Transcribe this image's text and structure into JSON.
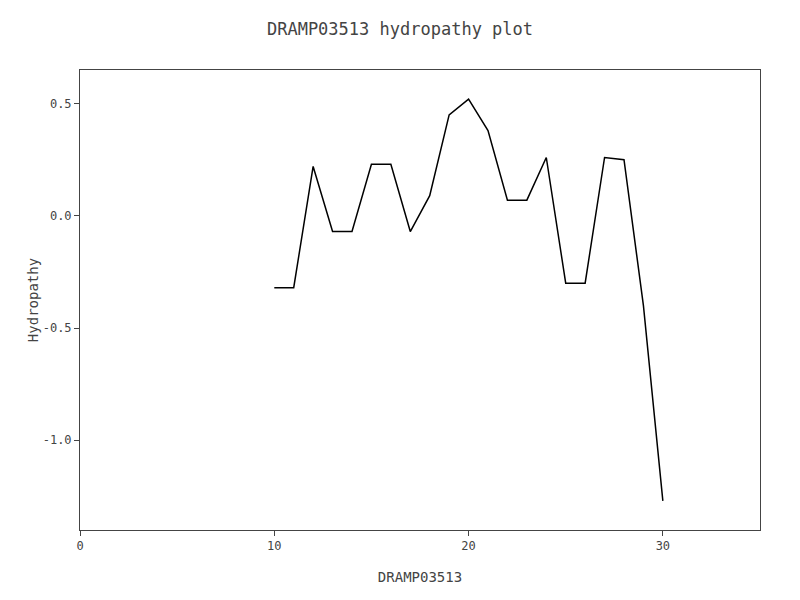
{
  "chart_data": {
    "type": "line",
    "title": "DRAMP03513 hydropathy plot",
    "xlabel": "DRAMP03513",
    "ylabel": "Hydropathy",
    "x": [
      10,
      11,
      12,
      13,
      14,
      15,
      16,
      17,
      18,
      19,
      20,
      21,
      22,
      23,
      24,
      25,
      26,
      27,
      28,
      29,
      30
    ],
    "values": [
      -0.32,
      -0.32,
      0.22,
      -0.07,
      -0.07,
      0.23,
      0.23,
      -0.07,
      0.09,
      0.45,
      0.52,
      0.38,
      0.07,
      0.07,
      0.26,
      -0.3,
      -0.3,
      0.26,
      0.25,
      -0.4,
      -1.27
    ],
    "color": "#000000",
    "xlim": [
      0,
      35
    ],
    "xticks": [
      0,
      10,
      20,
      30
    ],
    "ylim": [
      -1.4,
      0.65
    ],
    "yticks": [
      {
        "value": -1.0,
        "label": "-1.0"
      },
      -0.5,
      {
        "value": 0.0,
        "label": "0.0"
      },
      0.5
    ],
    "grid": false
  }
}
